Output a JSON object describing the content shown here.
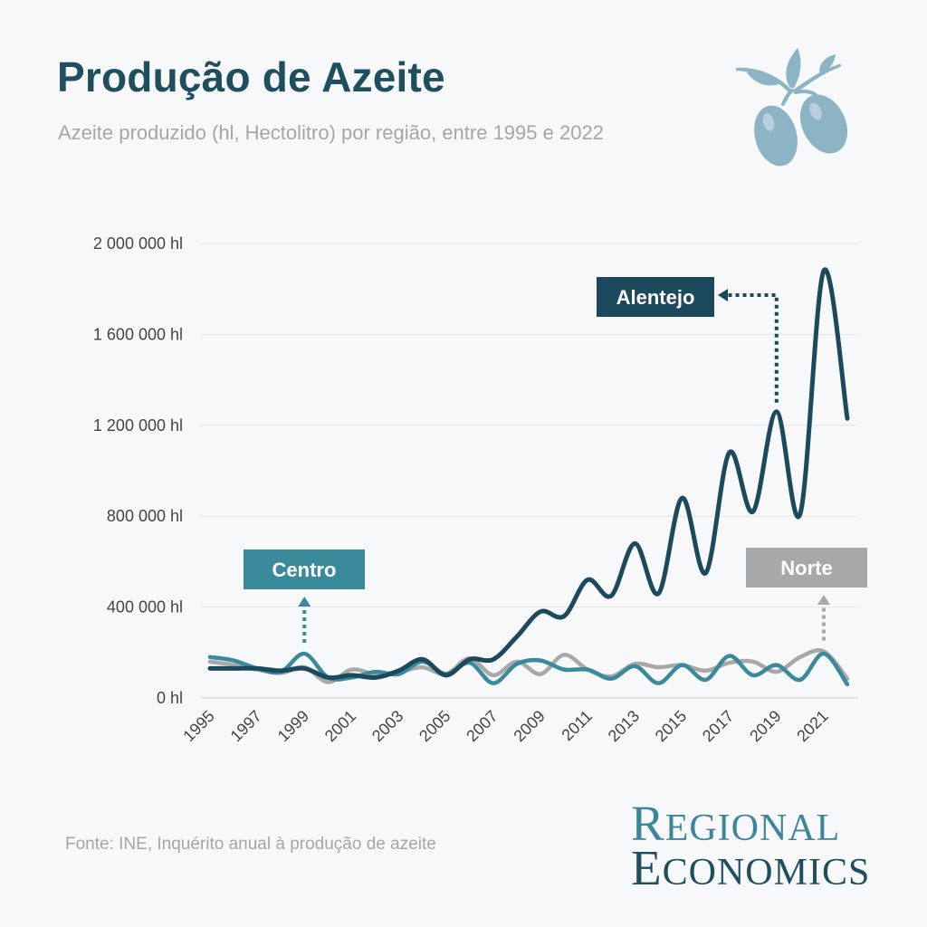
{
  "header": {
    "title": "Produção de Azeite",
    "subtitle": "Azeite produzido (hl, Hectolitro) por região, entre 1995 e 2022"
  },
  "footer": {
    "source": "Fonte: INE, Inquérito anual à produção de azeite"
  },
  "brand": {
    "line1_cap": "R",
    "line1_rest": "EGIONAL",
    "line2_cap": "E",
    "line2_rest": "CONOMICS"
  },
  "icons": {
    "logo": "olive-branch-icon"
  },
  "colors": {
    "alentejo": "#1c4a5c",
    "centro": "#3a8a9b",
    "norte": "#a8a8a8",
    "background": "#f7f8fa"
  },
  "chart_data": {
    "type": "line",
    "title": "Produção de Azeite",
    "xlabel": "",
    "ylabel": "",
    "x": [
      1995,
      1996,
      1997,
      1998,
      1999,
      2000,
      2001,
      2002,
      2003,
      2004,
      2005,
      2006,
      2007,
      2008,
      2009,
      2010,
      2011,
      2012,
      2013,
      2014,
      2015,
      2016,
      2017,
      2018,
      2019,
      2020,
      2021,
      2022
    ],
    "x_tick_labels": [
      "1995",
      "1997",
      "1999",
      "2001",
      "2003",
      "2005",
      "2007",
      "2009",
      "2011",
      "2013",
      "2015",
      "2017",
      "2019",
      "2021"
    ],
    "ylim": [
      0,
      2000000
    ],
    "y_ticks": [
      0,
      400000,
      800000,
      1200000,
      1600000,
      2000000
    ],
    "y_tick_labels": [
      "0 hl",
      "400 000 hl",
      "800 000 hl",
      "1 200 000 hl",
      "1 600 000 hl",
      "2 000 000 hl"
    ],
    "grid": true,
    "series": [
      {
        "name": "Alentejo",
        "color": "#1c4a5c",
        "values": [
          130000,
          130000,
          130000,
          120000,
          130000,
          90000,
          100000,
          90000,
          120000,
          170000,
          100000,
          170000,
          170000,
          270000,
          380000,
          360000,
          520000,
          450000,
          680000,
          460000,
          880000,
          550000,
          1080000,
          820000,
          1260000,
          810000,
          1880000,
          1230000
        ]
      },
      {
        "name": "Centro",
        "color": "#3a8a9b",
        "values": [
          180000,
          165000,
          130000,
          115000,
          195000,
          90000,
          90000,
          115000,
          105000,
          160000,
          105000,
          155000,
          65000,
          150000,
          165000,
          125000,
          125000,
          85000,
          140000,
          65000,
          145000,
          80000,
          185000,
          100000,
          145000,
          80000,
          195000,
          60000
        ]
      },
      {
        "name": "Norte",
        "color": "#a8a8a8",
        "values": [
          160000,
          145000,
          125000,
          110000,
          135000,
          70000,
          125000,
          105000,
          115000,
          135000,
          105000,
          175000,
          100000,
          160000,
          105000,
          190000,
          125000,
          95000,
          150000,
          135000,
          145000,
          120000,
          155000,
          160000,
          115000,
          180000,
          205000,
          85000
        ]
      }
    ],
    "annotations": [
      {
        "series": "Alentejo",
        "text": "Alentejo",
        "year": 2019,
        "direction": "up-left"
      },
      {
        "series": "Centro",
        "text": "Centro",
        "year": 1999,
        "direction": "up"
      },
      {
        "series": "Norte",
        "text": "Norte",
        "year": 2021,
        "direction": "up"
      }
    ],
    "legend": "none"
  }
}
